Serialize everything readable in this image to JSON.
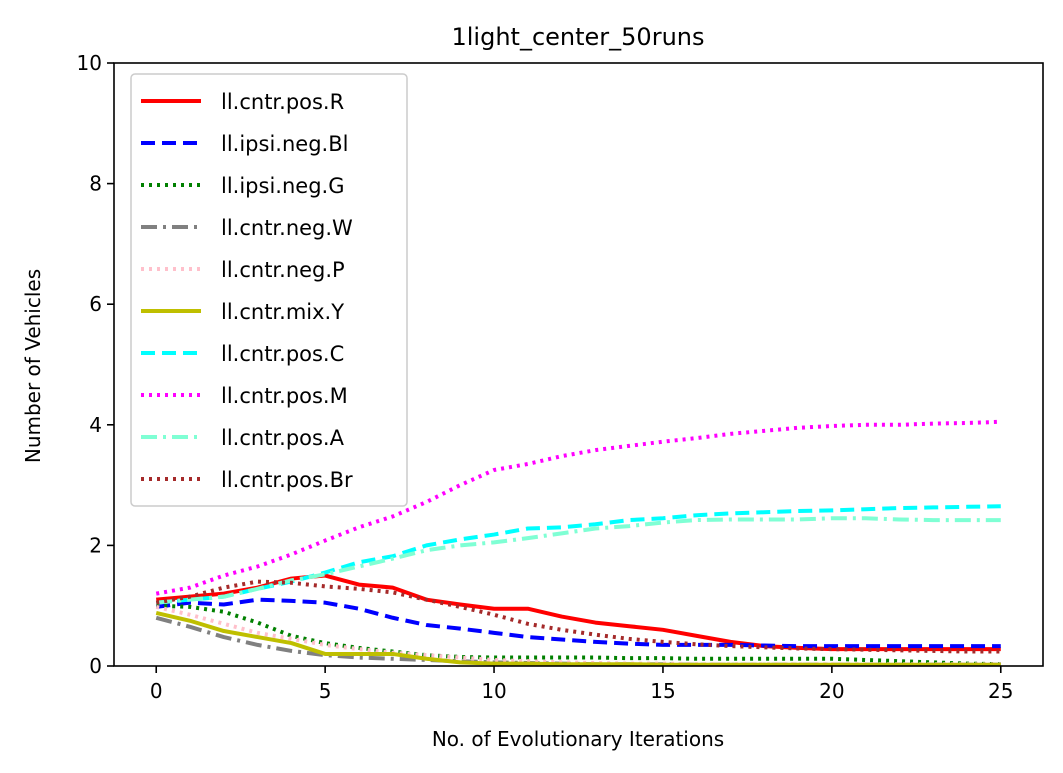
{
  "chart_data": {
    "type": "line",
    "title": "1light_center_50runs",
    "xlabel": "No. of Evolutionary Iterations",
    "ylabel": "Number of Vehicles",
    "xlim": [
      -1.25,
      26.25
    ],
    "ylim": [
      0,
      10
    ],
    "xticks": [
      0,
      5,
      10,
      15,
      20,
      25
    ],
    "yticks": [
      0,
      2,
      4,
      6,
      8,
      10
    ],
    "grid": false,
    "legend_position": "top-left",
    "x": [
      0,
      1,
      2,
      3,
      4,
      5,
      6,
      7,
      8,
      9,
      10,
      11,
      12,
      13,
      14,
      15,
      16,
      17,
      18,
      19,
      20,
      21,
      22,
      23,
      24,
      25
    ],
    "series": [
      {
        "name": "ll.cntr.pos.R",
        "color": "#ff0000",
        "style": "solid",
        "values": [
          1.1,
          1.15,
          1.2,
          1.3,
          1.45,
          1.5,
          1.35,
          1.3,
          1.1,
          1.02,
          0.95,
          0.95,
          0.82,
          0.72,
          0.66,
          0.6,
          0.5,
          0.4,
          0.33,
          0.3,
          0.28,
          0.28,
          0.28,
          0.28,
          0.28,
          0.28
        ]
      },
      {
        "name": "ll.ipsi.neg.Bl",
        "color": "#0000ff",
        "style": "dashed",
        "values": [
          0.98,
          1.05,
          1.02,
          1.1,
          1.08,
          1.05,
          0.95,
          0.8,
          0.68,
          0.62,
          0.55,
          0.48,
          0.44,
          0.4,
          0.37,
          0.35,
          0.35,
          0.35,
          0.34,
          0.33,
          0.33,
          0.33,
          0.33,
          0.33,
          0.33,
          0.33
        ]
      },
      {
        "name": "ll.ipsi.neg.G",
        "color": "#008000",
        "style": "dotted",
        "values": [
          1.0,
          0.98,
          0.9,
          0.72,
          0.5,
          0.38,
          0.3,
          0.24,
          0.18,
          0.15,
          0.14,
          0.14,
          0.14,
          0.14,
          0.13,
          0.13,
          0.12,
          0.12,
          0.12,
          0.12,
          0.12,
          0.1,
          0.08,
          0.06,
          0.04,
          0.03
        ]
      },
      {
        "name": "ll.cntr.neg.W",
        "color": "#808080",
        "style": "dashdot",
        "values": [
          0.8,
          0.65,
          0.48,
          0.35,
          0.25,
          0.18,
          0.14,
          0.12,
          0.1,
          0.08,
          0.06,
          0.05,
          0.04,
          0.03,
          0.03,
          0.03,
          0.02,
          0.02,
          0.02,
          0.02,
          0.02,
          0.02,
          0.02,
          0.02,
          0.02,
          0.02
        ]
      },
      {
        "name": "ll.cntr.neg.P",
        "color": "#ffc0cb",
        "style": "dotted",
        "values": [
          0.98,
          0.85,
          0.7,
          0.55,
          0.45,
          0.35,
          0.28,
          0.22,
          0.18,
          0.14,
          0.1,
          0.08,
          0.06,
          0.05,
          0.04,
          0.04,
          0.03,
          0.03,
          0.03,
          0.03,
          0.03,
          0.03,
          0.03,
          0.03,
          0.03,
          0.03
        ]
      },
      {
        "name": "ll.cntr.mix.Y",
        "color": "#bfbf00",
        "style": "solid",
        "values": [
          0.88,
          0.75,
          0.58,
          0.48,
          0.38,
          0.2,
          0.2,
          0.2,
          0.12,
          0.06,
          0.04,
          0.04,
          0.03,
          0.03,
          0.03,
          0.02,
          0.02,
          0.02,
          0.02,
          0.02,
          0.02,
          0.02,
          0.02,
          0.02,
          0.02,
          0.02
        ]
      },
      {
        "name": "ll.cntr.pos.C",
        "color": "#00ffff",
        "style": "dashed",
        "values": [
          1.05,
          1.1,
          1.15,
          1.28,
          1.4,
          1.55,
          1.72,
          1.82,
          2.0,
          2.1,
          2.18,
          2.28,
          2.3,
          2.35,
          2.42,
          2.45,
          2.5,
          2.53,
          2.55,
          2.57,
          2.58,
          2.6,
          2.62,
          2.63,
          2.64,
          2.65
        ]
      },
      {
        "name": "ll.cntr.pos.M",
        "color": "#ff00ff",
        "style": "dotted",
        "values": [
          1.2,
          1.3,
          1.5,
          1.65,
          1.85,
          2.08,
          2.3,
          2.48,
          2.72,
          3.0,
          3.25,
          3.35,
          3.48,
          3.58,
          3.65,
          3.72,
          3.78,
          3.85,
          3.9,
          3.95,
          3.98,
          4.0,
          4.0,
          4.02,
          4.03,
          4.05
        ]
      },
      {
        "name": "ll.cntr.pos.A",
        "color": "#7fffd4",
        "style": "dashdot",
        "values": [
          1.05,
          1.1,
          1.15,
          1.28,
          1.42,
          1.52,
          1.65,
          1.78,
          1.92,
          2.0,
          2.05,
          2.12,
          2.2,
          2.28,
          2.32,
          2.38,
          2.42,
          2.43,
          2.43,
          2.43,
          2.45,
          2.45,
          2.43,
          2.42,
          2.42,
          2.42
        ]
      },
      {
        "name": "ll.cntr.pos.Br",
        "color": "#a52a2a",
        "style": "dotted",
        "values": [
          1.05,
          1.15,
          1.3,
          1.4,
          1.38,
          1.32,
          1.28,
          1.22,
          1.1,
          0.98,
          0.85,
          0.7,
          0.6,
          0.52,
          0.45,
          0.4,
          0.36,
          0.33,
          0.31,
          0.29,
          0.28,
          0.27,
          0.26,
          0.25,
          0.24,
          0.24
        ]
      }
    ]
  }
}
